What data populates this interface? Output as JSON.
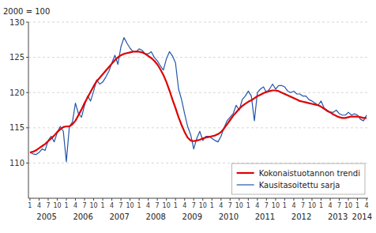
{
  "chart_data": {
    "type": "line",
    "y_label": "2000 = 100",
    "ylim": [
      105,
      130
    ],
    "yticks": [
      110,
      115,
      120,
      125,
      130
    ],
    "grid": true,
    "legend": "lower right",
    "categories": [
      "1",
      null,
      null,
      "4",
      null,
      null,
      "7",
      null,
      null,
      "10",
      null,
      null,
      "1",
      null,
      null,
      "4",
      null,
      null,
      "7",
      null,
      null,
      "10",
      null,
      null,
      "1",
      null,
      null,
      "4",
      null,
      null,
      "7",
      null,
      null,
      "10",
      null,
      null,
      "1",
      null,
      null,
      "4",
      null,
      null,
      "7",
      null,
      null,
      "10",
      null,
      null,
      "1",
      null,
      null,
      "4",
      null,
      null,
      "7",
      null,
      null,
      "10",
      null,
      null,
      "1",
      null,
      null,
      "4",
      null,
      null,
      "7",
      null,
      null,
      "10",
      null,
      null,
      "1",
      null,
      null,
      "4",
      null,
      null,
      "7",
      null,
      null,
      "10",
      null,
      null,
      "1",
      null,
      null,
      "4",
      null,
      null,
      "7",
      null,
      null,
      "10",
      null,
      null,
      "1",
      null,
      null,
      "4",
      null,
      null,
      "7",
      null,
      null,
      "10",
      null,
      null,
      "1",
      null,
      null,
      "4"
    ],
    "year_labels": [
      "2005",
      "2006",
      "2007",
      "2008",
      "2009",
      "2010",
      "2011",
      "2012",
      "2013",
      "2014"
    ],
    "series": [
      {
        "name": "Kausitasoitettu sarja",
        "color": "#2255aa",
        "values": [
          111.5,
          111.3,
          111.2,
          111.5,
          112.0,
          111.8,
          113.2,
          113.8,
          113.0,
          114.3,
          115.2,
          114.5,
          110.2,
          115.2,
          115.8,
          118.5,
          117.0,
          116.5,
          118.2,
          119.5,
          118.8,
          120.2,
          121.8,
          121.2,
          121.5,
          122.2,
          123.0,
          124.2,
          125.3,
          124.0,
          126.5,
          127.8,
          127.0,
          126.3,
          125.8,
          125.8,
          126.2,
          126.0,
          125.5,
          125.5,
          125.8,
          125.0,
          124.5,
          123.8,
          123.2,
          124.8,
          125.8,
          125.2,
          124.2,
          120.5,
          119.0,
          117.0,
          115.2,
          114.0,
          112.0,
          113.5,
          114.5,
          113.2,
          113.8,
          113.8,
          113.5,
          113.2,
          113.0,
          113.8,
          115.0,
          116.0,
          116.5,
          117.0,
          118.2,
          117.5,
          119.0,
          119.5,
          120.2,
          119.5,
          116.0,
          120.0,
          120.5,
          120.8,
          120.0,
          120.5,
          121.2,
          120.5,
          121.0,
          121.0,
          120.8,
          120.2,
          120.0,
          120.2,
          119.8,
          119.8,
          119.5,
          119.5,
          119.0,
          118.8,
          118.5,
          118.2,
          118.8,
          117.8,
          117.5,
          117.2,
          117.2,
          117.5,
          117.0,
          116.8,
          116.8,
          117.2,
          116.8,
          117.0,
          116.8,
          116.2,
          116.0,
          116.8
        ]
      },
      {
        "name": "Kokonaistuotannon trendi",
        "color": "#dd0000",
        "values": [
          111.5,
          111.6,
          111.8,
          112.1,
          112.4,
          112.7,
          113.1,
          113.5,
          113.9,
          114.4,
          114.8,
          115.1,
          115.2,
          115.2,
          115.5,
          116.0,
          116.8,
          117.6,
          118.5,
          119.3,
          120.1,
          120.9,
          121.6,
          122.1,
          122.6,
          123.1,
          123.6,
          124.1,
          124.6,
          125.0,
          125.3,
          125.5,
          125.6,
          125.7,
          125.8,
          125.8,
          125.8,
          125.7,
          125.5,
          125.2,
          124.9,
          124.5,
          124.0,
          123.3,
          122.5,
          121.5,
          120.3,
          119.0,
          117.8,
          116.5,
          115.4,
          114.4,
          113.6,
          113.2,
          113.1,
          113.2,
          113.3,
          113.5,
          113.6,
          113.7,
          113.8,
          113.9,
          114.1,
          114.4,
          114.9,
          115.5,
          116.1,
          116.7,
          117.2,
          117.7,
          118.1,
          118.4,
          118.7,
          118.9,
          119.2,
          119.5,
          119.7,
          119.9,
          120.1,
          120.2,
          120.3,
          120.3,
          120.2,
          120.0,
          119.8,
          119.6,
          119.4,
          119.2,
          119.0,
          118.8,
          118.7,
          118.6,
          118.5,
          118.4,
          118.3,
          118.2,
          118.0,
          117.7,
          117.4,
          117.2,
          116.9,
          116.7,
          116.5,
          116.4,
          116.4,
          116.5,
          116.6,
          116.6,
          116.6,
          116.5,
          116.4,
          116.4
        ]
      }
    ]
  }
}
